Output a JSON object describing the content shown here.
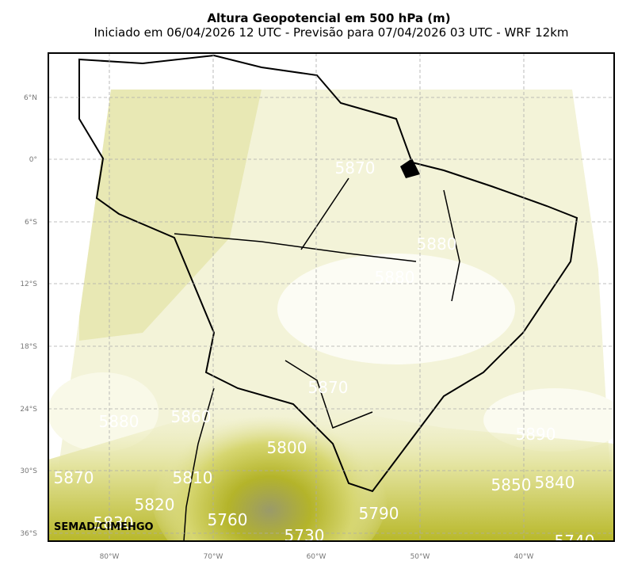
{
  "header": {
    "title": "Altura Geopotencial em 500 hPa (m)",
    "subtitle": "Iniciado em 06/04/2026 12 UTC - Previsão para 07/04/2026 03 UTC - WRF 12km"
  },
  "map": {
    "lat_labels": [
      "6°N",
      "0°",
      "6°S",
      "12°S",
      "18°S",
      "24°S",
      "30°S",
      "36°S"
    ],
    "lon_labels": [
      "80°W",
      "70°W",
      "60°W",
      "50°W",
      "40°W"
    ],
    "contour_labels": [
      5870,
      5880,
      5880,
      5870,
      5880,
      5860,
      5800,
      5810,
      5870,
      5820,
      5830,
      5760,
      5730,
      5790,
      5850,
      5840,
      5890,
      5740
    ],
    "credit": "SEMAD/CIMEHGO"
  }
}
